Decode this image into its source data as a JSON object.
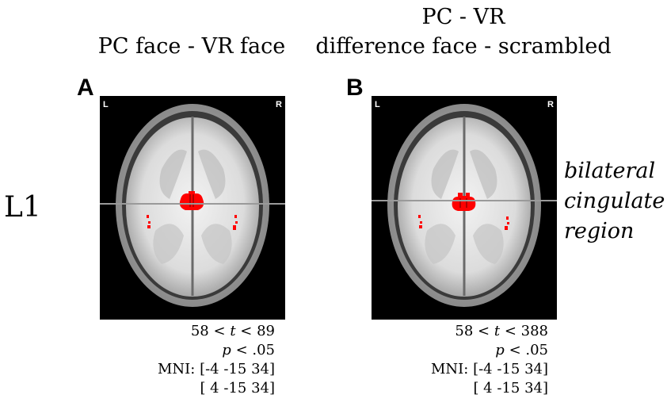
{
  "headers": {
    "left": "PC face - VR face",
    "right_line1": "PC - VR",
    "right_line2": "difference face - scrambled"
  },
  "row_label": "L1",
  "region": [
    "bilateral",
    "cingulate",
    "region"
  ],
  "panels": [
    {
      "letter": "A",
      "left_mark": "L",
      "right_mark": "R",
      "stats": {
        "t_low": "58 <",
        "t_var": "t",
        "t_high": "< 89",
        "p_var": "p",
        "p_rest": "< .05",
        "mni1": "MNI: [-4 -15 34]",
        "mni2": "[ 4 -15 34]"
      }
    },
    {
      "letter": "B",
      "left_mark": "L",
      "right_mark": "R",
      "stats": {
        "t_low": "58 <",
        "t_var": "t",
        "t_high": "< 388",
        "p_var": "p",
        "p_rest": "< .05",
        "mni1": "MNI: [-4 -15 34]",
        "mni2": "[ 4 -15 34]"
      }
    }
  ],
  "colors": {
    "activation": "#ff0000",
    "background": "#000000",
    "crosshair": "#9a9a9a"
  }
}
